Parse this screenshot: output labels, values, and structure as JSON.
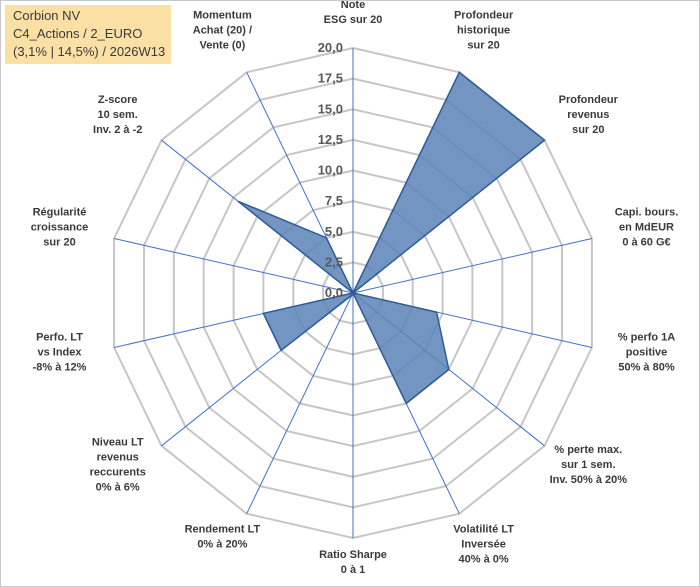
{
  "info_box": {
    "line1": "Corbion NV",
    "line2": "C4_Actions / 2_EURO",
    "line3": "(3,1% | 14,5%) / 2026W13"
  },
  "colors": {
    "fill": "#5b82b6",
    "stroke": "#2f5c96",
    "grid": "#c6c6c6",
    "spoke": "#4472c4",
    "info_bg": "#fbe0a6"
  },
  "chart_data": {
    "type": "radar",
    "title": "",
    "rmin": 0,
    "rmax": 20,
    "tick_step": 2.5,
    "tick_labels": [
      "0,0",
      "2,5",
      "5,0",
      "7,5",
      "10,0",
      "12,5",
      "15,0",
      "17,5",
      "20,0"
    ],
    "categories": [
      [
        "Note",
        "ESG sur 20"
      ],
      [
        "Profondeur",
        "historique",
        "sur 20"
      ],
      [
        "Profondeur",
        "revenus",
        "sur 20"
      ],
      [
        "Capi. bours.",
        "en MdEUR",
        "0 à 60 G€"
      ],
      [
        "% perfo 1A",
        "positive",
        "50% à 80%"
      ],
      [
        "% perte max.",
        "sur 1 sem.",
        "Inv. 50% à 20%"
      ],
      [
        "Volatilité LT",
        "Inversée",
        "40% à 0%"
      ],
      [
        "Ratio Sharpe",
        "0 à 1"
      ],
      [
        "Rendement LT",
        "0% à 20%"
      ],
      [
        "Niveau LT",
        "revenus",
        "reccurents",
        "0% à 6%"
      ],
      [
        "Perfo. LT",
        "vs Index",
        "-8% à 12%"
      ],
      [
        "Régularité",
        "croissance",
        "sur 20"
      ],
      [
        "Z-score",
        "10 sem.",
        "Inv. 2 à -2"
      ],
      [
        "Momentum",
        "Achat (20) /",
        "Vente (0)"
      ]
    ],
    "series": [
      {
        "name": "Corbion NV",
        "values": [
          0,
          20,
          20,
          0,
          7,
          10,
          10,
          0,
          0.2,
          7.5,
          7.5,
          0,
          12,
          5
        ]
      }
    ]
  }
}
